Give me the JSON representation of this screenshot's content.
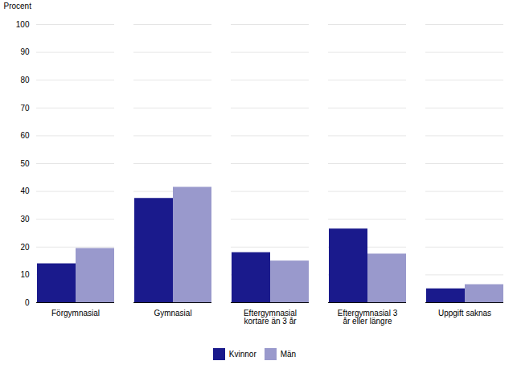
{
  "chart_data": {
    "type": "bar",
    "categories": [
      "Förgymnasial",
      "Gymnasial",
      "Eftergymnasial\nkortare än 3 år",
      "Eftergymnasial 3\når eller längre",
      "Uppgift saknas"
    ],
    "series": [
      {
        "name": "Kvinnor",
        "color": "#1a1a8c",
        "values": [
          14,
          37.5,
          18,
          26.5,
          5
        ]
      },
      {
        "name": "Män",
        "color": "#9999cc",
        "values": [
          19.5,
          41.5,
          15,
          17.5,
          6.5
        ]
      }
    ],
    "ylabel": "Procent",
    "ylim": [
      0,
      100
    ],
    "yticks": [
      0,
      10,
      20,
      30,
      40,
      50,
      60,
      70,
      80,
      90,
      100
    ],
    "grid": true,
    "legend": "bottom"
  }
}
